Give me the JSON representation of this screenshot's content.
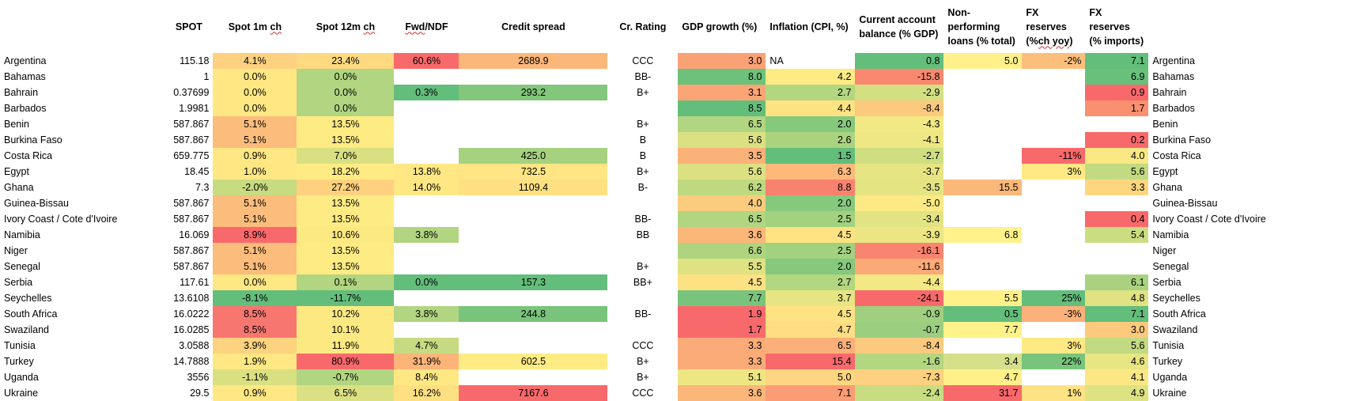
{
  "headers": {
    "country": "",
    "spot": "SPOT",
    "spot1m_prefix": "Spot 1m ",
    "spot1m_word": "ch",
    "spot12m_prefix": "Spot 12m ",
    "spot12m_word": "ch",
    "fwd_word": "Fwd",
    "fwd_suffix": "/NDF",
    "credit": "Credit spread",
    "rating": "Cr. Rating",
    "gdp": "GDP growth (%)",
    "infl": "Inflation (CPI, %)",
    "ca": "Current account balance (% GDP)",
    "npl": "Non-performing loans (% total)",
    "fxyoy_prefix": "FX reserves (%",
    "fxyoy_word": "ch yoy",
    "fxyoy_suffix": ")",
    "fximp": "FX reserves (% imports)",
    "country2": ""
  },
  "palette": {
    "red": "#f8696b",
    "orange_red": "#fa9d75",
    "orange": "#fbaa77",
    "light_orange": "#fdc47d",
    "yellow": "#ffeb84",
    "yellow_green": "#d9e081",
    "light_green": "#b1d580",
    "green": "#84c77c",
    "dark_green": "#63be7b"
  },
  "rows": [
    {
      "country": "Argentina",
      "spot": "115.18",
      "spot1m": "4.1%",
      "spot1m_color": "#fdd17f",
      "spot12m": "23.4%",
      "spot12m_color": "#fed980",
      "fwd": "60.6%",
      "fwd_color": "#f8696b",
      "credit": "2689.9",
      "credit_color": "#fbb679",
      "rating": "CCC",
      "gdp": "3.0",
      "gdp_color": "#fba176",
      "infl": "NA",
      "infl_color": "#ffffff",
      "ca": "0.8",
      "ca_color": "#63be7b",
      "npl": "5.0",
      "npl_color": "#fff08a",
      "fxyoy": "-2%",
      "fxyoy_color": "#fcbf7b",
      "fximp": "7.1",
      "fximp_color": "#63be7b",
      "country2": "Argentina"
    },
    {
      "country": "Bahamas",
      "spot": "1",
      "spot1m": "0.0%",
      "spot1m_color": "#ffe783",
      "spot12m": "0.0%",
      "spot12m_color": "#b1d580",
      "fwd": "",
      "fwd_color": "#ffffff",
      "credit": "",
      "credit_color": "#ffffff",
      "rating": "BB-",
      "gdp": "8.0",
      "gdp_color": "#6ec17b",
      "infl": "4.2",
      "infl_color": "#ffeb84",
      "ca": "-15.8",
      "ca_color": "#f98870",
      "npl": "",
      "npl_color": "#ffffff",
      "fxyoy": "",
      "fxyoy_color": "#ffffff",
      "fximp": "6.9",
      "fximp_color": "#69c07b",
      "country2": "Bahamas"
    },
    {
      "country": "Bahrain",
      "spot": "0.37699",
      "spot1m": "0.0%",
      "spot1m_color": "#ffe783",
      "spot12m": "0.0%",
      "spot12m_color": "#b1d580",
      "fwd": "0.3%",
      "fwd_color": "#63be7b",
      "credit": "293.2",
      "credit_color": "#82c77c",
      "rating": "B+",
      "gdp": "3.1",
      "gdp_color": "#fba577",
      "infl": "2.7",
      "infl_color": "#b3d681",
      "ca": "-2.9",
      "ca_color": "#d4df82",
      "npl": "",
      "npl_color": "#ffffff",
      "fxyoy": "",
      "fxyoy_color": "#ffffff",
      "fximp": "0.9",
      "fximp_color": "#f8696b",
      "country2": "Bahrain"
    },
    {
      "country": "Barbados",
      "spot": "1.9981",
      "spot1m": "0.0%",
      "spot1m_color": "#ffe783",
      "spot12m": "0.0%",
      "spot12m_color": "#b1d580",
      "fwd": "",
      "fwd_color": "#ffffff",
      "credit": "",
      "credit_color": "#ffffff",
      "rating": "",
      "gdp": "8.5",
      "gdp_color": "#63be7b",
      "infl": "4.4",
      "infl_color": "#ffe383",
      "ca": "-8.4",
      "ca_color": "#fcca7e",
      "npl": "",
      "npl_color": "#ffffff",
      "fxyoy": "",
      "fxyoy_color": "#ffffff",
      "fximp": "1.7",
      "fximp_color": "#f9906f",
      "country2": "Barbados"
    },
    {
      "country": "Benin",
      "spot": "587.867",
      "spot1m": "5.1%",
      "spot1m_color": "#fcbc7b",
      "spot12m": "13.5%",
      "spot12m_color": "#ffeb84",
      "fwd": "",
      "fwd_color": "#ffffff",
      "credit": "",
      "credit_color": "#ffffff",
      "rating": "B+",
      "gdp": "6.5",
      "gdp_color": "#b1d580",
      "infl": "2.0",
      "infl_color": "#86c87c",
      "ca": "-4.3",
      "ca_color": "#f2e884",
      "npl": "",
      "npl_color": "#ffffff",
      "fxyoy": "",
      "fxyoy_color": "#ffffff",
      "fximp": "",
      "fximp_color": "#ffffff",
      "country2": "Benin"
    },
    {
      "country": "Burkina Faso",
      "spot": "587.867",
      "spot1m": "5.1%",
      "spot1m_color": "#fcbc7b",
      "spot12m": "13.5%",
      "spot12m_color": "#ffeb84",
      "fwd": "",
      "fwd_color": "#ffffff",
      "credit": "",
      "credit_color": "#ffffff",
      "rating": "B",
      "gdp": "5.6",
      "gdp_color": "#dbe182",
      "infl": "2.6",
      "infl_color": "#aad380",
      "ca": "-4.1",
      "ca_color": "#eee784",
      "npl": "",
      "npl_color": "#ffffff",
      "fxyoy": "",
      "fxyoy_color": "#ffffff",
      "fximp": "0.2",
      "fximp_color": "#f8696b",
      "country2": "Burkina Faso"
    },
    {
      "country": "Costa Rica",
      "spot": "659.775",
      "spot1m": "0.9%",
      "spot1m_color": "#ffe783",
      "spot12m": "7.0%",
      "spot12m_color": "#d9e081",
      "fwd": "",
      "fwd_color": "#ffffff",
      "credit": "425.0",
      "credit_color": "#a6d17f",
      "rating": "B",
      "gdp": "3.5",
      "gdp_color": "#fbb279",
      "infl": "1.5",
      "infl_color": "#63be7b",
      "ca": "-2.7",
      "ca_color": "#d0de82",
      "npl": "",
      "npl_color": "#ffffff",
      "fxyoy": "-11%",
      "fxyoy_color": "#f8696b",
      "fximp": "4.0",
      "fximp_color": "#f9e884",
      "country2": "Costa Rica"
    },
    {
      "country": "Egypt",
      "spot": "18.45",
      "spot1m": "1.0%",
      "spot1m_color": "#ffe783",
      "spot12m": "18.2%",
      "spot12m_color": "#ffeb84",
      "fwd": "13.8%",
      "fwd_color": "#ffe783",
      "credit": "732.5",
      "credit_color": "#ffe583",
      "rating": "B+",
      "gdp": "5.6",
      "gdp_color": "#dbe182",
      "infl": "6.3",
      "infl_color": "#fdb87a",
      "ca": "-3.7",
      "ca_color": "#e7e583",
      "npl": "",
      "npl_color": "#ffffff",
      "fxyoy": "3%",
      "fxyoy_color": "#ffe984",
      "fximp": "5.6",
      "fximp_color": "#c2da81",
      "country2": "Egypt"
    },
    {
      "country": "Ghana",
      "spot": "7.3",
      "spot1m": "-2.0%",
      "spot1m_color": "#c7db81",
      "spot12m": "27.2%",
      "spot12m_color": "#ffd17f",
      "fwd": "14.0%",
      "fwd_color": "#ffe783",
      "credit": "1109.4",
      "credit_color": "#fee082",
      "rating": "B-",
      "gdp": "6.2",
      "gdp_color": "#bed980",
      "infl": "8.8",
      "infl_color": "#f9826f",
      "ca": "-3.5",
      "ca_color": "#e4e483",
      "npl": "15.5",
      "npl_color": "#fbb87a",
      "fxyoy": "",
      "fxyoy_color": "#ffffff",
      "fximp": "3.3",
      "fximp_color": "#fed680",
      "country2": "Ghana"
    },
    {
      "country": "Guinea-Bissau",
      "spot": "587.867",
      "spot1m": "5.1%",
      "spot1m_color": "#fcbc7b",
      "spot12m": "13.5%",
      "spot12m_color": "#ffeb84",
      "fwd": "",
      "fwd_color": "#ffffff",
      "credit": "",
      "credit_color": "#ffffff",
      "rating": "",
      "gdp": "4.0",
      "gdp_color": "#fccc7e",
      "infl": "2.0",
      "infl_color": "#86c87c",
      "ca": "-5.0",
      "ca_color": "#fdea84",
      "npl": "",
      "npl_color": "#ffffff",
      "fxyoy": "",
      "fxyoy_color": "#ffffff",
      "fximp": "",
      "fximp_color": "#ffffff",
      "country2": "Guinea-Bissau"
    },
    {
      "country": "Ivory Coast / Cote d'Ivoire",
      "spot": "587.867",
      "spot1m": "5.1%",
      "spot1m_color": "#fcbc7b",
      "spot12m": "13.5%",
      "spot12m_color": "#ffeb84",
      "fwd": "",
      "fwd_color": "#ffffff",
      "credit": "",
      "credit_color": "#ffffff",
      "rating": "BB-",
      "gdp": "6.5",
      "gdp_color": "#b1d580",
      "infl": "2.5",
      "infl_color": "#a2d17f",
      "ca": "-3.4",
      "ca_color": "#e2e383",
      "npl": "",
      "npl_color": "#ffffff",
      "fxyoy": "",
      "fxyoy_color": "#ffffff",
      "fximp": "0.4",
      "fximp_color": "#f8696b",
      "country2": "Ivory Coast / Cote d'Ivoire"
    },
    {
      "country": "Namibia",
      "spot": "16.069",
      "spot1m": "8.9%",
      "spot1m_color": "#f8696b",
      "spot12m": "10.6%",
      "spot12m_color": "#fde982",
      "fwd": "3.8%",
      "fwd_color": "#b1d580",
      "credit": "",
      "credit_color": "#ffffff",
      "rating": "BB",
      "gdp": "3.6",
      "gdp_color": "#fbb67a",
      "infl": "4.5",
      "infl_color": "#ffe383",
      "ca": "-3.9",
      "ca_color": "#ebe683",
      "npl": "6.8",
      "npl_color": "#fff28b",
      "fxyoy": "",
      "fxyoy_color": "#ffffff",
      "fximp": "5.4",
      "fximp_color": "#cbdd81",
      "country2": "Namibia"
    },
    {
      "country": "Niger",
      "spot": "587.867",
      "spot1m": "5.1%",
      "spot1m_color": "#fcbc7b",
      "spot12m": "13.5%",
      "spot12m_color": "#ffeb84",
      "fwd": "",
      "fwd_color": "#ffffff",
      "credit": "",
      "credit_color": "#ffffff",
      "rating": "",
      "gdp": "6.6",
      "gdp_color": "#aed480",
      "infl": "2.5",
      "infl_color": "#a2d17f",
      "ca": "-16.1",
      "ca_color": "#f9846f",
      "npl": "",
      "npl_color": "#ffffff",
      "fxyoy": "",
      "fxyoy_color": "#ffffff",
      "fximp": "",
      "fximp_color": "#ffffff",
      "country2": "Niger"
    },
    {
      "country": "Senegal",
      "spot": "587.867",
      "spot1m": "5.1%",
      "spot1m_color": "#fcbc7b",
      "spot12m": "13.5%",
      "spot12m_color": "#ffeb84",
      "fwd": "",
      "fwd_color": "#ffffff",
      "credit": "",
      "credit_color": "#ffffff",
      "rating": "B+",
      "gdp": "5.5",
      "gdp_color": "#dfe283",
      "infl": "2.0",
      "infl_color": "#86c87c",
      "ca": "-11.6",
      "ca_color": "#fba976",
      "npl": "",
      "npl_color": "#ffffff",
      "fxyoy": "",
      "fxyoy_color": "#ffffff",
      "fximp": "",
      "fximp_color": "#ffffff",
      "country2": "Senegal"
    },
    {
      "country": "Serbia",
      "spot": "117.61",
      "spot1m": "0.0%",
      "spot1m_color": "#ffe783",
      "spot12m": "0.1%",
      "spot12m_color": "#b1d580",
      "fwd": "0.0%",
      "fwd_color": "#63be7b",
      "credit": "157.3",
      "credit_color": "#63be7b",
      "rating": "BB+",
      "gdp": "4.5",
      "gdp_color": "#fde283",
      "infl": "2.7",
      "infl_color": "#b3d681",
      "ca": "-4.4",
      "ca_color": "#f4e884",
      "npl": "",
      "npl_color": "#ffffff",
      "fxyoy": "",
      "fxyoy_color": "#ffffff",
      "fximp": "6.1",
      "fximp_color": "#a8d27f",
      "country2": "Serbia"
    },
    {
      "country": "Seychelles",
      "spot": "13.6108",
      "spot1m": "-8.1%",
      "spot1m_color": "#63be7b",
      "spot12m": "-11.7%",
      "spot12m_color": "#63be7b",
      "fwd": "",
      "fwd_color": "#ffffff",
      "credit": "",
      "credit_color": "#ffffff",
      "rating": "",
      "gdp": "7.7",
      "gdp_color": "#79c47c",
      "infl": "3.7",
      "infl_color": "#e6e483",
      "ca": "-24.1",
      "ca_color": "#f8696b",
      "npl": "5.5",
      "npl_color": "#fff08a",
      "fxyoy": "25%",
      "fxyoy_color": "#63be7b",
      "fximp": "4.8",
      "fximp_color": "#e0e283",
      "country2": "Seychelles"
    },
    {
      "country": "South Africa",
      "spot": "16.0222",
      "spot1m": "8.5%",
      "spot1m_color": "#f87670",
      "spot12m": "10.2%",
      "spot12m_color": "#fde982",
      "fwd": "3.8%",
      "fwd_color": "#b1d580",
      "credit": "244.8",
      "credit_color": "#79c47c",
      "rating": "BB-",
      "gdp": "1.9",
      "gdp_color": "#f8696b",
      "infl": "4.5",
      "infl_color": "#ffe383",
      "ca": "-0.9",
      "ca_color": "#9fcf7f",
      "npl": "0.5",
      "npl_color": "#63be7b",
      "fxyoy": "-3%",
      "fxyoy_color": "#fbb179",
      "fximp": "7.1",
      "fximp_color": "#63be7b",
      "country2": "South Africa"
    },
    {
      "country": "Swaziland",
      "spot": "16.0285",
      "spot1m": "8.5%",
      "spot1m_color": "#f87670",
      "spot12m": "10.1%",
      "spot12m_color": "#fde982",
      "fwd": "",
      "fwd_color": "#ffffff",
      "credit": "",
      "credit_color": "#ffffff",
      "rating": "",
      "gdp": "1.7",
      "gdp_color": "#f8696b",
      "infl": "4.7",
      "infl_color": "#ffdd82",
      "ca": "-0.7",
      "ca_color": "#9bce7f",
      "npl": "7.7",
      "npl_color": "#fff28b",
      "fxyoy": "",
      "fxyoy_color": "#ffffff",
      "fximp": "3.0",
      "fximp_color": "#fdc97d",
      "country2": "Swaziland"
    },
    {
      "country": "Tunisia",
      "spot": "3.0588",
      "spot1m": "3.9%",
      "spot1m_color": "#fdd37f",
      "spot12m": "11.9%",
      "spot12m_color": "#fde982",
      "fwd": "4.7%",
      "fwd_color": "#c6db81",
      "credit": "",
      "credit_color": "#ffffff",
      "rating": "CCC",
      "gdp": "3.3",
      "gdp_color": "#fbab78",
      "infl": "6.5",
      "infl_color": "#fcb079",
      "ca": "-8.4",
      "ca_color": "#fcca7e",
      "npl": "",
      "npl_color": "#ffffff",
      "fxyoy": "3%",
      "fxyoy_color": "#ffe984",
      "fximp": "5.6",
      "fximp_color": "#c2da81",
      "country2": "Tunisia"
    },
    {
      "country": "Turkey",
      "spot": "14.7888",
      "spot1m": "1.9%",
      "spot1m_color": "#ffe783",
      "spot12m": "80.9%",
      "spot12m_color": "#f8696b",
      "fwd": "31.9%",
      "fwd_color": "#fcb479",
      "credit": "602.5",
      "credit_color": "#feeb84",
      "rating": "B+",
      "gdp": "3.3",
      "gdp_color": "#fbab78",
      "infl": "15.4",
      "infl_color": "#f8696b",
      "ca": "-1.6",
      "ca_color": "#b3d681",
      "npl": "3.4",
      "npl_color": "#d6e08a",
      "fxyoy": "22%",
      "fxyoy_color": "#79c47c",
      "fximp": "4.6",
      "fximp_color": "#e8e583",
      "country2": "Turkey"
    },
    {
      "country": "Uganda",
      "spot": "3556",
      "spot1m": "-1.1%",
      "spot1m_color": "#d9e082",
      "spot12m": "-0.7%",
      "spot12m_color": "#b1d580",
      "fwd": "8.4%",
      "fwd_color": "#ffe783",
      "credit": "",
      "credit_color": "#ffffff",
      "rating": "B+",
      "gdp": "5.1",
      "gdp_color": "#eee683",
      "infl": "5.0",
      "infl_color": "#fed580",
      "ca": "-7.3",
      "ca_color": "#fdd17f",
      "npl": "4.7",
      "npl_color": "#fff08a",
      "fxyoy": "",
      "fxyoy_color": "#ffffff",
      "fximp": "4.1",
      "fximp_color": "#fbe884",
      "country2": "Uganda"
    },
    {
      "country": "Ukraine",
      "spot": "29.5",
      "spot1m": "0.9%",
      "spot1m_color": "#ffe783",
      "spot12m": "6.5%",
      "spot12m_color": "#dbe182",
      "fwd": "16.2%",
      "fwd_color": "#fee082",
      "credit": "7167.6",
      "credit_color": "#f8696b",
      "rating": "CCC",
      "gdp": "3.6",
      "gdp_color": "#fbb67a",
      "infl": "7.1",
      "infl_color": "#fa9d75",
      "ca": "-2.4",
      "ca_color": "#c8dc82",
      "npl": "31.7",
      "npl_color": "#f8696b",
      "fxyoy": "1%",
      "fxyoy_color": "#ffe283",
      "fximp": "4.9",
      "fximp_color": "#dde283",
      "country2": "Ukraine"
    }
  ]
}
